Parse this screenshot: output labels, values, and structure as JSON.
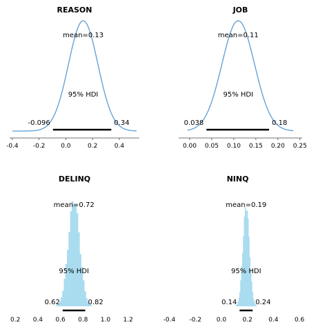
{
  "chart_data": [
    {
      "type": "area",
      "title": "REASON",
      "mean_label": "mean=0.13",
      "hdi_label": "95% HDI",
      "hdi_low_label": "-0.096",
      "hdi_high_label": "0.34",
      "hdi": [
        -0.096,
        0.34
      ],
      "xlim": [
        -0.42,
        0.55
      ],
      "xticks": [
        "-0.4",
        "-0.2",
        "0.0",
        "0.2",
        "0.4"
      ],
      "mean": 0.13,
      "sd": 0.11,
      "color": "#5b9bd5"
    },
    {
      "type": "area",
      "title": "JOB",
      "mean_label": "mean=0.11",
      "hdi_label": "95% HDI",
      "hdi_low_label": "0.038",
      "hdi_high_label": "0.18",
      "hdi": [
        0.038,
        0.18
      ],
      "xlim": [
        -0.025,
        0.255
      ],
      "xticks": [
        "0.00",
        "0.05",
        "0.10",
        "0.15",
        "0.20",
        "0.25"
      ],
      "mean": 0.11,
      "sd": 0.037,
      "color": "#5b9bd5"
    },
    {
      "type": "bar",
      "title": "DELINQ",
      "mean_label": "mean=0.72",
      "hdi_label": "95% HDI",
      "hdi_low_label": "0.62",
      "hdi_high_label": "0.82",
      "hdi": [
        0.62,
        0.82
      ],
      "xlim": [
        0.15,
        1.3
      ],
      "xticks": [
        "0.2",
        "0.4",
        "0.6",
        "0.8",
        "1.0",
        "1.2"
      ],
      "mean": 0.72,
      "sd": 0.05,
      "color": "#aadcef"
    },
    {
      "type": "bar",
      "title": "NINQ",
      "mean_label": "mean=0.19",
      "hdi_label": "95% HDI",
      "hdi_low_label": "0.14",
      "hdi_high_label": "0.24",
      "hdi": [
        0.14,
        0.24
      ],
      "xlim": [
        -0.45,
        0.7
      ],
      "xticks": [
        "-0.4",
        "-0.2",
        "0.0",
        "0.2",
        "0.4",
        "0.6"
      ],
      "mean": 0.19,
      "sd": 0.025,
      "color": "#aadcef"
    }
  ]
}
